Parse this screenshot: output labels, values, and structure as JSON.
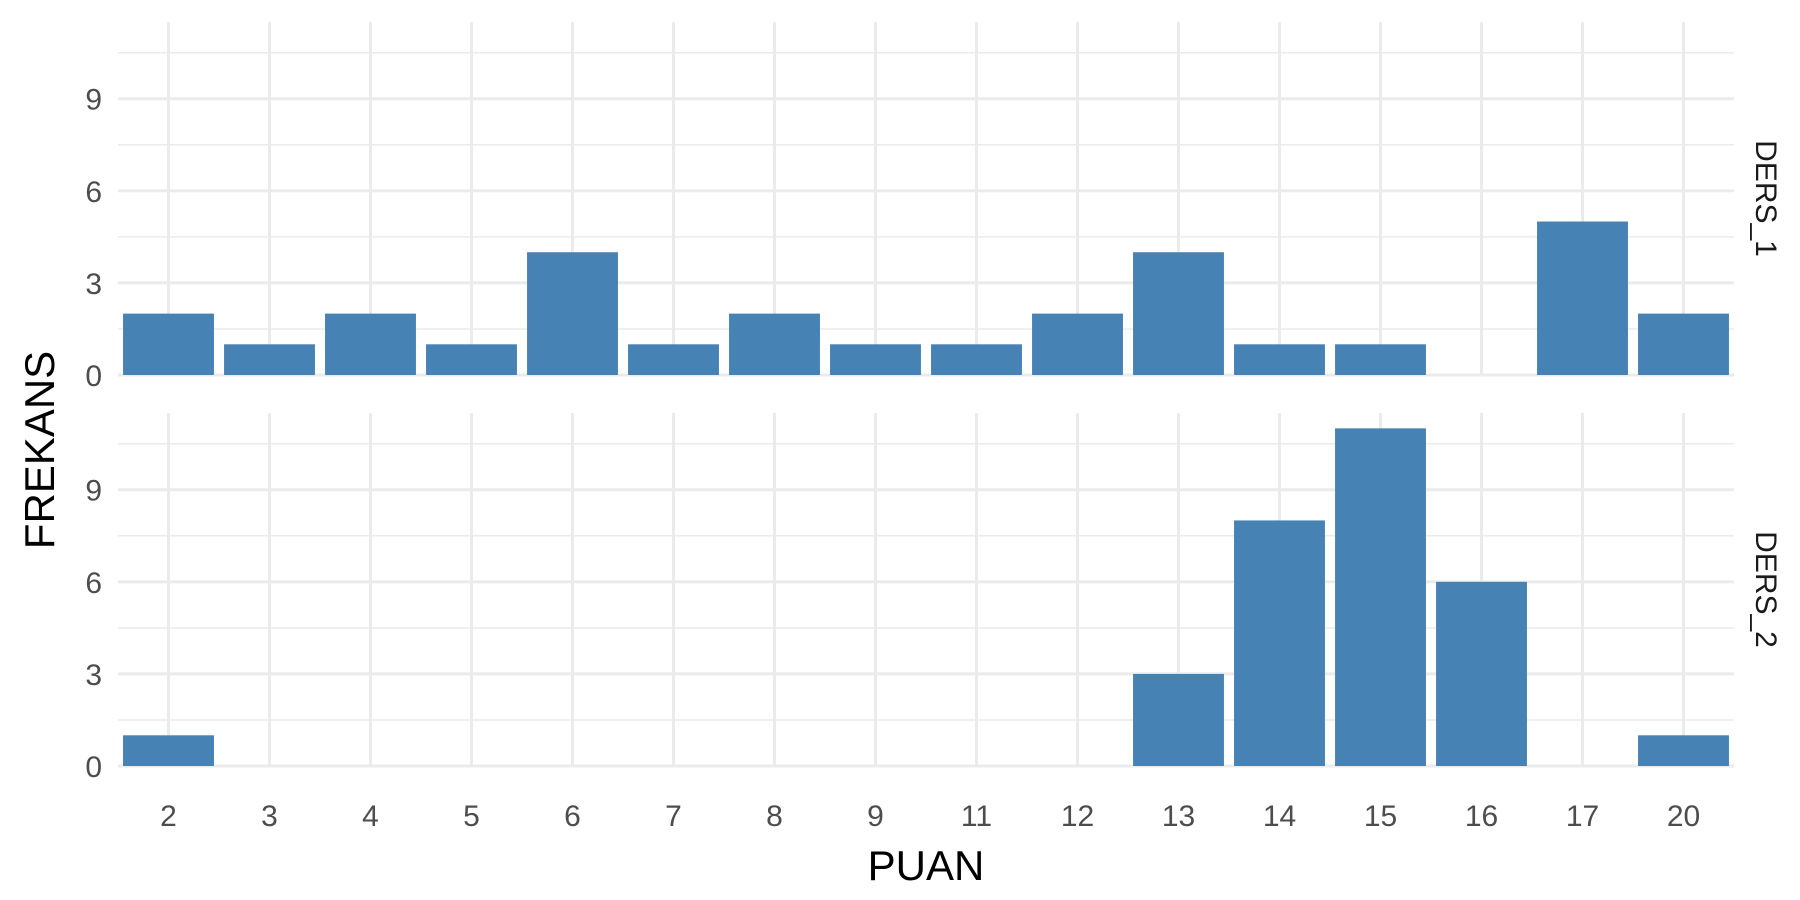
{
  "chart_data": {
    "type": "bar",
    "xlabel": "PUAN",
    "ylabel": "FREKANS",
    "categories": [
      "2",
      "3",
      "4",
      "5",
      "6",
      "7",
      "8",
      "9",
      "11",
      "12",
      "13",
      "14",
      "15",
      "16",
      "17",
      "20"
    ],
    "ylim": [
      0,
      11.5
    ],
    "yticks": [
      "0",
      "3",
      "6",
      "9"
    ],
    "grid": true,
    "bar_color": "#4682b4",
    "panels": [
      {
        "name": "DERS_1",
        "values": [
          2,
          1,
          2,
          1,
          4,
          1,
          2,
          1,
          1,
          2,
          4,
          1,
          1,
          0,
          5,
          2
        ]
      },
      {
        "name": "DERS_2",
        "values": [
          1,
          0,
          0,
          0,
          0,
          0,
          0,
          0,
          0,
          0,
          3,
          8,
          11,
          6,
          0,
          1
        ]
      }
    ]
  }
}
